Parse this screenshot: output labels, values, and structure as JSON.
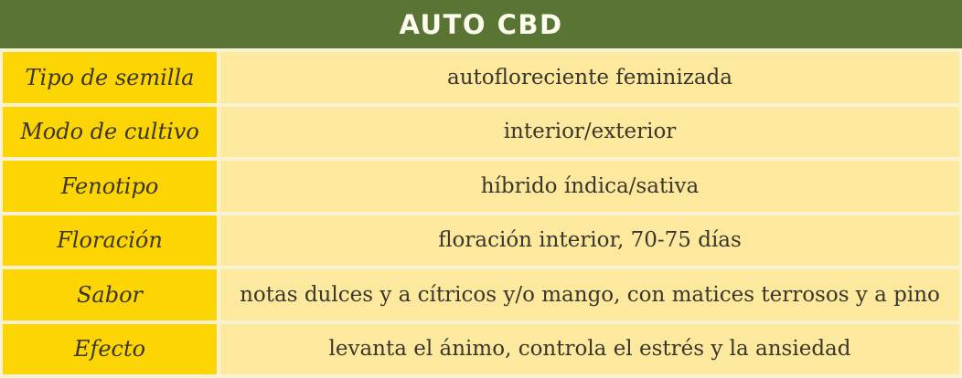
{
  "table": {
    "title": "AUTO CBD",
    "rows": [
      {
        "label": "Tipo de semilla",
        "value": "autofloreciente feminizada"
      },
      {
        "label": "Modo de cultivo",
        "value": "interior/exterior"
      },
      {
        "label": "Fenotipo",
        "value": "híbrido índica/sativa"
      },
      {
        "label": "Floración",
        "value": "floración interior, 70-75 días"
      },
      {
        "label": "Sabor",
        "value": "notas dulces y a cítricos y/o mango, con matices terrosos y a pino"
      },
      {
        "label": "Efecto",
        "value": "levanta el ánimo, controla el estrés y la ansiedad"
      }
    ],
    "colors": {
      "header_bg": "#5a7533",
      "header_text": "#fdfbee",
      "label_bg": "#fcd503",
      "value_bg": "#fce99d",
      "gap": "#f8f2d2",
      "text": "#3a362c"
    }
  }
}
